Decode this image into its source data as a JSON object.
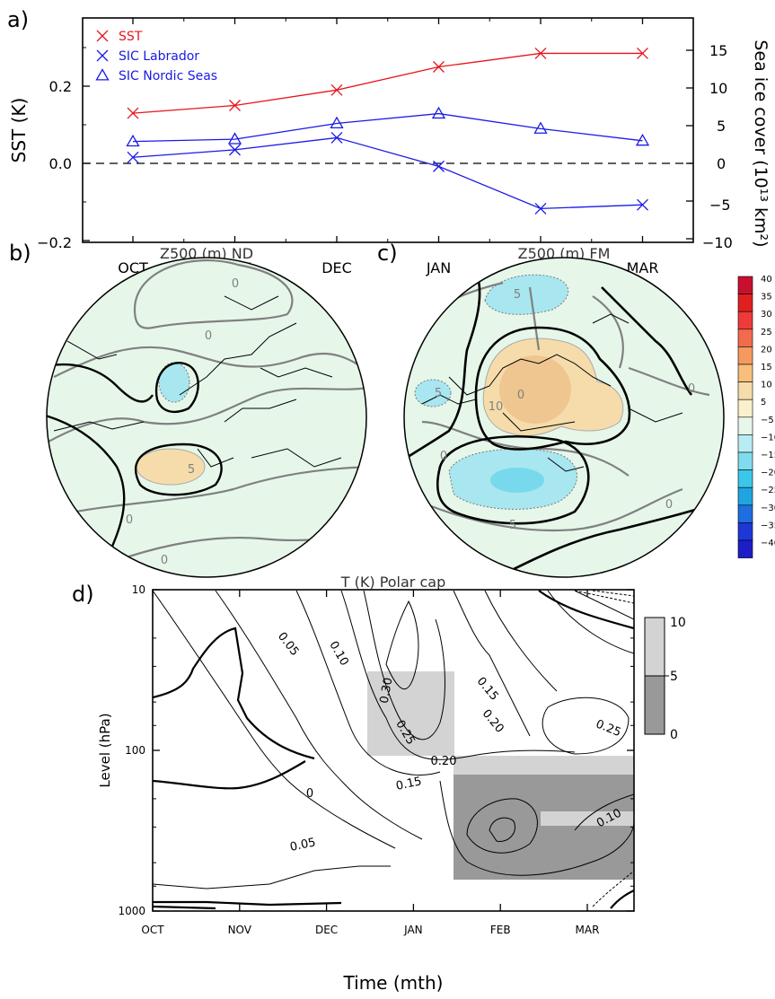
{
  "panel_a": {
    "label": "a)",
    "ylabel_left": "SST (K)",
    "ylabel_right": "Sea ice cover (10¹³ km²)",
    "left_ticks": [
      "−0.2",
      "0.0",
      "0.2"
    ],
    "right_ticks": [
      "−10",
      "−5",
      "0",
      "5",
      "10",
      "15"
    ]
  },
  "panel_b": {
    "label": "b)",
    "title": "Z500 (m) ND",
    "contour_labels": [
      "0",
      "0",
      "5",
      "0",
      "0"
    ]
  },
  "panel_c": {
    "label": "c)",
    "title": "Z500 (m) FM",
    "contour_labels": [
      "5",
      "0",
      "5",
      "10",
      "0",
      "0",
      "5",
      "0"
    ]
  },
  "colorbar": {
    "labels": [
      "40",
      "35",
      "30",
      "25",
      "20",
      "15",
      "10",
      "5",
      "−5",
      "−10",
      "−15",
      "−20",
      "−25",
      "−30",
      "−35",
      "−40"
    ]
  },
  "panel_d": {
    "label": "d)",
    "title": "T (K) Polar cap",
    "ylabel": "Level (hPa)",
    "xlabel": "Time (mth)",
    "y_ticks": [
      "10",
      "100",
      "1000"
    ],
    "contour_labels": [
      "0.05",
      "0.10",
      "0.30",
      "0.25",
      "0.20",
      "0.15",
      "0.15",
      "0.20",
      "0.25",
      "0.10",
      "0.05",
      "0"
    ],
    "sig_legend": [
      "10",
      "5",
      "0"
    ]
  },
  "chart_data": [
    {
      "type": "line",
      "panel": "a",
      "categories": [
        "OCT",
        "NOV",
        "DEC",
        "JAN",
        "FEB",
        "MAR"
      ],
      "ylim_left": [
        -0.2,
        0.35
      ],
      "ylim_right": [
        -10,
        17.5
      ],
      "legend_position": "top-left",
      "series": [
        {
          "name": "SST",
          "axis": "left",
          "marker": "x",
          "color": "#e8141c",
          "values": [
            0.13,
            0.15,
            0.19,
            0.25,
            0.285,
            0.285
          ]
        },
        {
          "name": "SIC Labrador",
          "axis": "right",
          "marker": "x",
          "color": "#1a1ae6",
          "values": [
            0.8,
            1.8,
            3.4,
            -0.4,
            -6.0,
            -5.5
          ]
        },
        {
          "name": "SIC Nordic Seas",
          "axis": "right",
          "marker": "triangle",
          "color": "#1a1ae6",
          "values": [
            2.9,
            3.2,
            5.3,
            6.6,
            4.6,
            3.0
          ]
        }
      ]
    },
    {
      "type": "heatmap",
      "panel": "d",
      "x_categories": [
        "OCT",
        "NOV",
        "DEC",
        "JAN",
        "FEB",
        "MAR"
      ],
      "y_axis": {
        "scale": "log",
        "range": [
          10,
          1000
        ],
        "inverted": true,
        "ticks": [
          10,
          100,
          1000
        ]
      },
      "contours": [
        0,
        0.05,
        0.1,
        0.15,
        0.2,
        0.25,
        0.3
      ],
      "significance_levels": [
        0,
        5,
        10
      ]
    }
  ]
}
